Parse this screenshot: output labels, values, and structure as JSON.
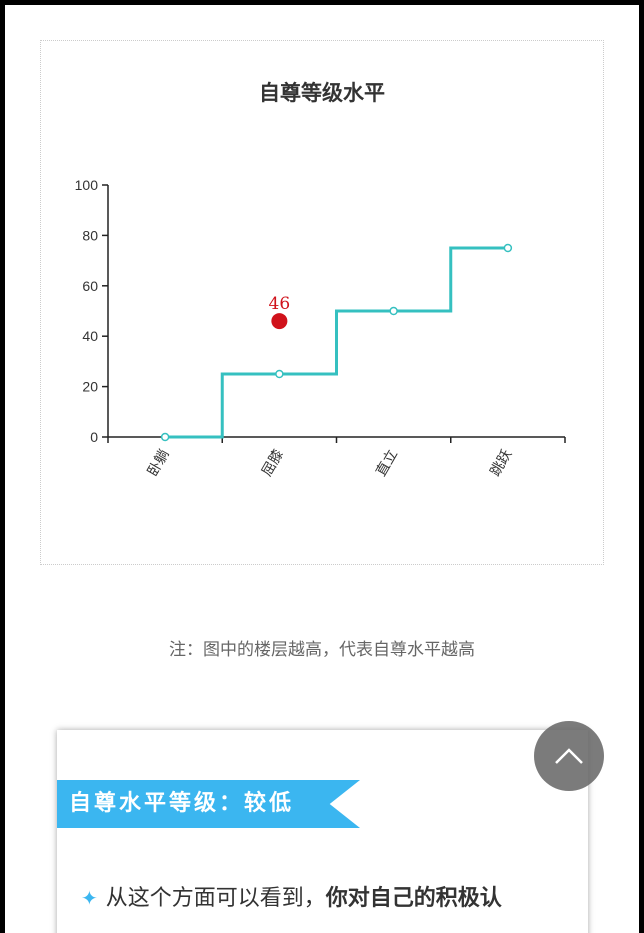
{
  "chart_data": {
    "type": "line",
    "step": true,
    "title": "自尊等级水平",
    "categories": [
      "卧躺",
      "屈膝",
      "直立",
      "跳跃"
    ],
    "series": [
      {
        "values": [
          0,
          25,
          50,
          75
        ],
        "color": "#35c0c0"
      }
    ],
    "highlight": {
      "category": "屈膝",
      "value": 46,
      "label": "46",
      "color": "#d0121b"
    },
    "yticks": [
      0,
      20,
      40,
      60,
      80,
      100
    ],
    "ylim": [
      0,
      100
    ],
    "grid": false
  },
  "note": "注：图中的楼层越高，代表自尊水平越高",
  "card": {
    "banner": "自尊水平等级：较低",
    "bullet_icon": "four-point-star-icon",
    "bullet_text": "从这个方面可以看到，",
    "bullet_bold": "你对自己的积极认"
  },
  "scroll_top_icon": "chevron-up-icon"
}
